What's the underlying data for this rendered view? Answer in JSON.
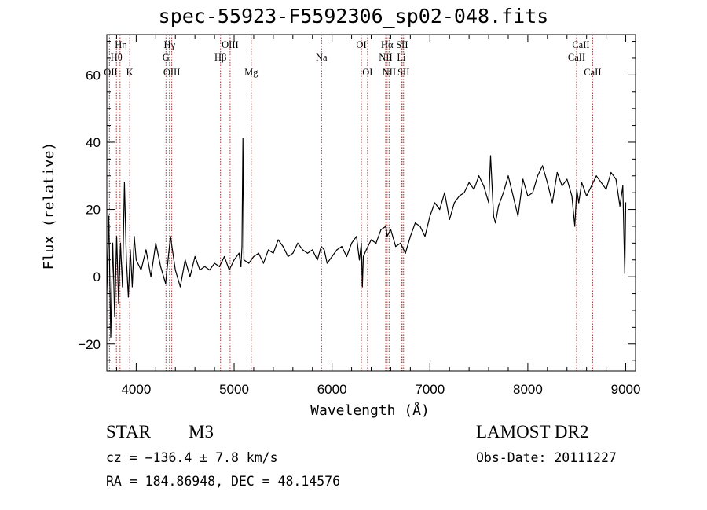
{
  "title": "spec-55923-F5592306_sp02-048.fits",
  "info": {
    "object_type": "STAR",
    "subclass": "M3",
    "survey": "LAMOST DR2",
    "redshift_line": "cz = −136.4 ± 7.8 km/s",
    "obs_date_line": "Obs-Date: 20111227",
    "coords_line": "RA = 184.86948, DEC =  48.14576"
  },
  "chart_data": {
    "type": "line",
    "xlabel": "Wavelength (Å)",
    "ylabel": "Flux (relative)",
    "xlim": [
      3700,
      9100
    ],
    "ylim": [
      -28,
      72
    ],
    "xticks": [
      4000,
      5000,
      6000,
      7000,
      8000,
      9000
    ],
    "yticks": [
      -20,
      0,
      20,
      40,
      60
    ],
    "ytick_labels": [
      "−20",
      "0",
      "20",
      "40",
      "60"
    ],
    "grid": false,
    "line_color": "#000000",
    "marker_color": "#b03030",
    "series": [
      {
        "x": [
          3700,
          3720,
          3740,
          3760,
          3780,
          3800,
          3820,
          3840,
          3860,
          3880,
          3900,
          3920,
          3940,
          3960,
          3980,
          4000,
          4050,
          4100,
          4150,
          4200,
          4250,
          4300,
          4350,
          4400,
          4450,
          4500,
          4550,
          4600,
          4650,
          4700,
          4750,
          4800,
          4850,
          4900,
          4950,
          5000,
          5050,
          5070,
          5080,
          5090,
          5100,
          5150,
          5200,
          5250,
          5300,
          5350,
          5400,
          5450,
          5500,
          5550,
          5600,
          5650,
          5700,
          5750,
          5800,
          5850,
          5890,
          5920,
          5950,
          6000,
          6050,
          6100,
          6150,
          6200,
          6250,
          6280,
          6300,
          6310,
          6320,
          6350,
          6400,
          6450,
          6500,
          6550,
          6563,
          6580,
          6600,
          6650,
          6700,
          6750,
          6800,
          6850,
          6900,
          6950,
          7000,
          7050,
          7100,
          7150,
          7200,
          7250,
          7300,
          7350,
          7400,
          7450,
          7500,
          7550,
          7600,
          7620,
          7650,
          7670,
          7700,
          7750,
          7800,
          7850,
          7900,
          7950,
          8000,
          8050,
          8100,
          8150,
          8200,
          8250,
          8300,
          8350,
          8400,
          8450,
          8480,
          8500,
          8520,
          8550,
          8600,
          8650,
          8700,
          8750,
          8800,
          8850,
          8900,
          8940,
          8970,
          8990,
          9000
        ],
        "y": [
          -5,
          18,
          -18,
          10,
          -12,
          12,
          -8,
          10,
          -3,
          28,
          5,
          -6,
          8,
          -3,
          12,
          5,
          2,
          8,
          0,
          10,
          3,
          -2,
          12,
          2,
          -3,
          5,
          0,
          6,
          2,
          3,
          2,
          4,
          3,
          6,
          2,
          5,
          7,
          3,
          9,
          41,
          5,
          4,
          6,
          7,
          4,
          8,
          7,
          11,
          9,
          6,
          7,
          10,
          8,
          7,
          8,
          5,
          9,
          8,
          4,
          6,
          8,
          9,
          6,
          10,
          12,
          5,
          10,
          -3,
          6,
          8,
          11,
          10,
          14,
          15,
          12,
          13,
          14,
          9,
          10,
          7,
          12,
          16,
          15,
          12,
          18,
          22,
          20,
          25,
          17,
          22,
          24,
          25,
          28,
          26,
          30,
          27,
          22,
          36,
          18,
          16,
          21,
          25,
          30,
          24,
          18,
          29,
          24,
          25,
          30,
          33,
          28,
          22,
          31,
          27,
          29,
          24,
          15,
          26,
          22,
          28,
          24,
          27,
          30,
          28,
          26,
          31,
          29,
          21,
          27,
          1,
          22
        ]
      }
    ],
    "line_markers": [
      {
        "name": "OII",
        "wl": 3727,
        "lvl": 2,
        "lx": 3740
      },
      {
        "name": "Hθ",
        "wl": 3798,
        "lvl": 1,
        "lx": 3798
      },
      {
        "name": "Hη",
        "wl": 3835,
        "lvl": 0,
        "lx": 3845
      },
      {
        "name": "K",
        "wl": 3934,
        "lvl": 2,
        "lx": 3934
      },
      {
        "name": "Hγ",
        "wl": 4340,
        "lvl": 0,
        "lx": 4340
      },
      {
        "name": "G",
        "wl": 4304,
        "lvl": 1,
        "lx": 4304
      },
      {
        "name": "OIII",
        "wl": 4363,
        "lvl": 2,
        "lx": 4363
      },
      {
        "name": "Hβ",
        "wl": 4861,
        "lvl": 1,
        "lx": 4861
      },
      {
        "name": "OIII",
        "wl": 4959,
        "lvl": 0,
        "lx": 4959
      },
      {
        "name": "Mg",
        "wl": 5175,
        "lvl": 2,
        "lx": 5175
      },
      {
        "name": "Na",
        "wl": 5893,
        "lvl": 1,
        "lx": 5893
      },
      {
        "name": "OI",
        "wl": 6300,
        "lvl": 0,
        "lx": 6300
      },
      {
        "name": "OI",
        "wl": 6363,
        "lvl": 2,
        "lx": 6363
      },
      {
        "name": "NII",
        "wl": 6548,
        "lvl": 1,
        "lx": 6548
      },
      {
        "name": "Hα",
        "wl": 6563,
        "lvl": 0,
        "lx": 6563
      },
      {
        "name": "NII",
        "wl": 6583,
        "lvl": 2,
        "lx": 6583
      },
      {
        "name": "SII",
        "wl": 6716,
        "lvl": 0,
        "lx": 6716
      },
      {
        "name": "SII",
        "wl": 6731,
        "lvl": 2,
        "lx": 6731
      },
      {
        "name": "Li",
        "wl": 6708,
        "lvl": 1,
        "lx": 6708
      },
      {
        "name": "CaII",
        "wl": 8498,
        "lvl": 1,
        "lx": 8498
      },
      {
        "name": "CaII",
        "wl": 8542,
        "lvl": 0,
        "lx": 8542
      },
      {
        "name": "CaII",
        "wl": 8662,
        "lvl": 2,
        "lx": 8662
      }
    ]
  }
}
